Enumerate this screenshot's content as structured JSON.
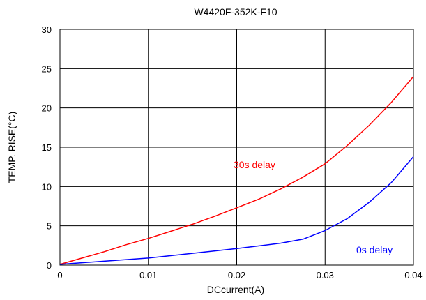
{
  "chart_data": {
    "type": "line",
    "title": "W4420F-352K-F10",
    "xlabel": "DCcurrent(A)",
    "ylabel": "TEMP. RISE(°C)",
    "xlim": [
      0,
      0.04
    ],
    "ylim": [
      0,
      30
    ],
    "x_ticks": [
      "0",
      "0.01",
      "0.02",
      "0.03",
      "0.04"
    ],
    "y_ticks": [
      "0",
      "5",
      "10",
      "15",
      "20",
      "25",
      "30"
    ],
    "grid": true,
    "series": [
      {
        "name": "30s delay",
        "color": "#ff0000",
        "x": [
          0,
          0.0025,
          0.005,
          0.0075,
          0.01,
          0.0125,
          0.015,
          0.0175,
          0.02,
          0.0225,
          0.025,
          0.0275,
          0.03,
          0.0325,
          0.035,
          0.0375,
          0.04
        ],
        "y": [
          0.1,
          0.9,
          1.7,
          2.6,
          3.4,
          4.3,
          5.2,
          6.2,
          7.3,
          8.4,
          9.7,
          11.2,
          12.9,
          15.2,
          17.8,
          20.7,
          24.0
        ]
      },
      {
        "name": "0s delay",
        "color": "#0000ff",
        "x": [
          0,
          0.005,
          0.01,
          0.015,
          0.02,
          0.025,
          0.0275,
          0.03,
          0.0325,
          0.035,
          0.0375,
          0.04
        ],
        "y": [
          0.1,
          0.5,
          0.9,
          1.5,
          2.1,
          2.8,
          3.3,
          4.4,
          5.9,
          8.0,
          10.5,
          13.8
        ]
      }
    ]
  }
}
